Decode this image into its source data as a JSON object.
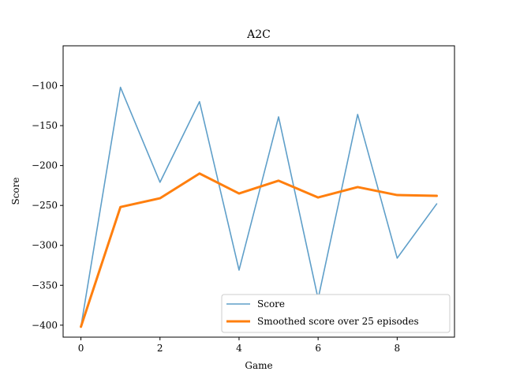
{
  "chart_data": {
    "type": "line",
    "title": "A2C",
    "xlabel": "Game",
    "ylabel": "Score",
    "xlim": [
      -0.45,
      9.45
    ],
    "ylim": [
      -415,
      -50
    ],
    "x_ticks": [
      0,
      2,
      4,
      6,
      8
    ],
    "y_ticks": [
      -100,
      -150,
      -200,
      -250,
      -300,
      -350,
      -400
    ],
    "x_tick_labels": [
      "0",
      "2",
      "4",
      "6",
      "8"
    ],
    "y_tick_labels": [
      "−100",
      "−150",
      "−200",
      "−250",
      "−300",
      "−350",
      "−400"
    ],
    "x": [
      0,
      1,
      2,
      3,
      4,
      5,
      6,
      7,
      8,
      9
    ],
    "series": [
      {
        "name": "Score",
        "color": "#5f9fc9",
        "values": [
          -402,
          -102,
          -221,
          -120,
          -331,
          -139,
          -367,
          -136,
          -316,
          -248
        ]
      },
      {
        "name": "Smoothed score over 25 episodes",
        "color": "#ff7f0e",
        "values": [
          -402,
          -252,
          -241,
          -210,
          -235,
          -219,
          -240,
          -227,
          -237,
          -238
        ]
      }
    ],
    "legend_position": "lower-right",
    "grid": false
  }
}
